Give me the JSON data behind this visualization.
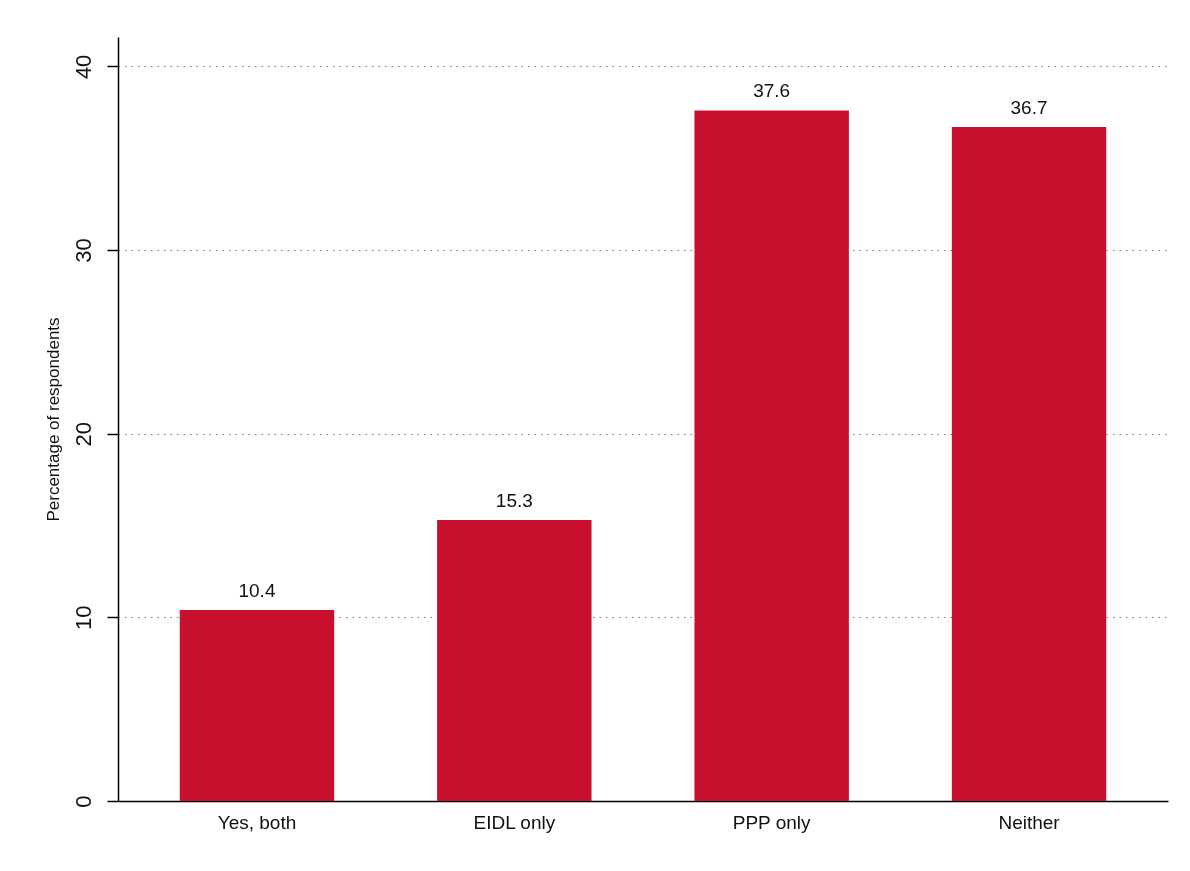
{
  "chart_data": {
    "type": "bar",
    "ylabel": "Percentage of respondents",
    "categories": [
      "Yes, both",
      "EIDL only",
      "PPP only",
      "Neither"
    ],
    "values": [
      10.4,
      15.3,
      37.6,
      36.7
    ],
    "color": "#c8102e",
    "ylim": [
      0,
      41.6
    ],
    "yticks": [
      0,
      10,
      20,
      30,
      40
    ],
    "grid": "y",
    "data_labels": true
  }
}
